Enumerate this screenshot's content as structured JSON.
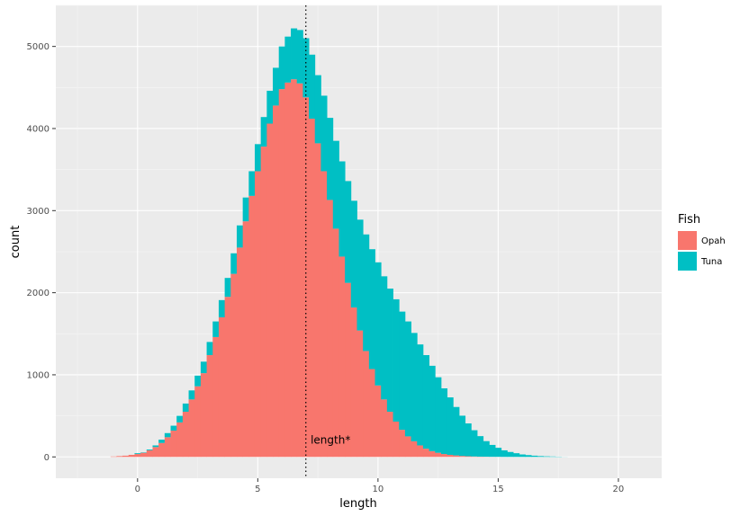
{
  "chart_data": {
    "type": "bar",
    "subtype": "stacked histogram",
    "title": "",
    "xlabel": "length",
    "ylabel": "count",
    "xlim": [
      -3.4,
      21.8
    ],
    "ylim": [
      -260,
      5500
    ],
    "x_ticks": [
      0,
      5,
      10,
      15,
      20
    ],
    "y_ticks": [
      0,
      1000,
      2000,
      3000,
      4000,
      5000
    ],
    "grid": true,
    "legend": {
      "title": "Fish",
      "position": "right",
      "entries": [
        {
          "label": "Opah",
          "color": "#F8766D"
        },
        {
          "label": "Tuna",
          "color": "#00BFC4"
        }
      ]
    },
    "bin_width": 0.25,
    "x": [
      -1.0,
      -0.75,
      -0.5,
      -0.25,
      0.0,
      0.25,
      0.5,
      0.75,
      1.0,
      1.25,
      1.5,
      1.75,
      2.0,
      2.25,
      2.5,
      2.75,
      3.0,
      3.25,
      3.5,
      3.75,
      4.0,
      4.25,
      4.5,
      4.75,
      5.0,
      5.25,
      5.5,
      5.75,
      6.0,
      6.25,
      6.5,
      6.75,
      7.0,
      7.25,
      7.5,
      7.75,
      8.0,
      8.25,
      8.5,
      8.75,
      9.0,
      9.25,
      9.5,
      9.75,
      10.0,
      10.25,
      10.5,
      10.75,
      11.0,
      11.25,
      11.5,
      11.75,
      12.0,
      12.25,
      12.5,
      12.75,
      13.0,
      13.25,
      13.5,
      13.75,
      14.0,
      14.25,
      14.5,
      14.75,
      15.0,
      15.25,
      15.5,
      15.75,
      16.0,
      16.25,
      16.5,
      16.75,
      17.0,
      17.25,
      17.5,
      17.75
    ],
    "series": [
      {
        "name": "Opah",
        "values": [
          5,
          10,
          15,
          25,
          35,
          50,
          80,
          120,
          170,
          240,
          320,
          420,
          550,
          700,
          860,
          1020,
          1240,
          1460,
          1700,
          1950,
          2230,
          2550,
          2870,
          3180,
          3480,
          3780,
          4060,
          4280,
          4480,
          4560,
          4600,
          4550,
          4380,
          4120,
          3820,
          3480,
          3130,
          2780,
          2440,
          2120,
          1820,
          1540,
          1290,
          1070,
          870,
          700,
          550,
          430,
          330,
          250,
          190,
          140,
          100,
          70,
          50,
          35,
          25,
          18,
          12,
          8,
          5,
          3,
          2,
          1,
          1,
          0,
          0,
          0,
          0,
          0,
          0,
          0,
          0,
          0,
          0,
          0
        ]
      },
      {
        "name": "Tuna",
        "values": [
          0,
          0,
          0,
          0,
          10,
          5,
          10,
          20,
          40,
          50,
          60,
          80,
          100,
          110,
          130,
          140,
          160,
          190,
          210,
          230,
          250,
          270,
          290,
          300,
          330,
          360,
          400,
          460,
          520,
          560,
          620,
          650,
          720,
          780,
          830,
          920,
          1000,
          1070,
          1160,
          1240,
          1300,
          1350,
          1420,
          1460,
          1500,
          1500,
          1500,
          1490,
          1440,
          1400,
          1320,
          1230,
          1140,
          1040,
          920,
          800,
          700,
          590,
          490,
          400,
          320,
          250,
          190,
          145,
          110,
          80,
          60,
          45,
          30,
          22,
          15,
          10,
          7,
          5,
          3,
          1
        ]
      }
    ],
    "annotations": [
      {
        "text": "length*",
        "x": 7.2,
        "y": 160
      }
    ],
    "vline": {
      "x": 7.0,
      "style": "dotted"
    }
  }
}
